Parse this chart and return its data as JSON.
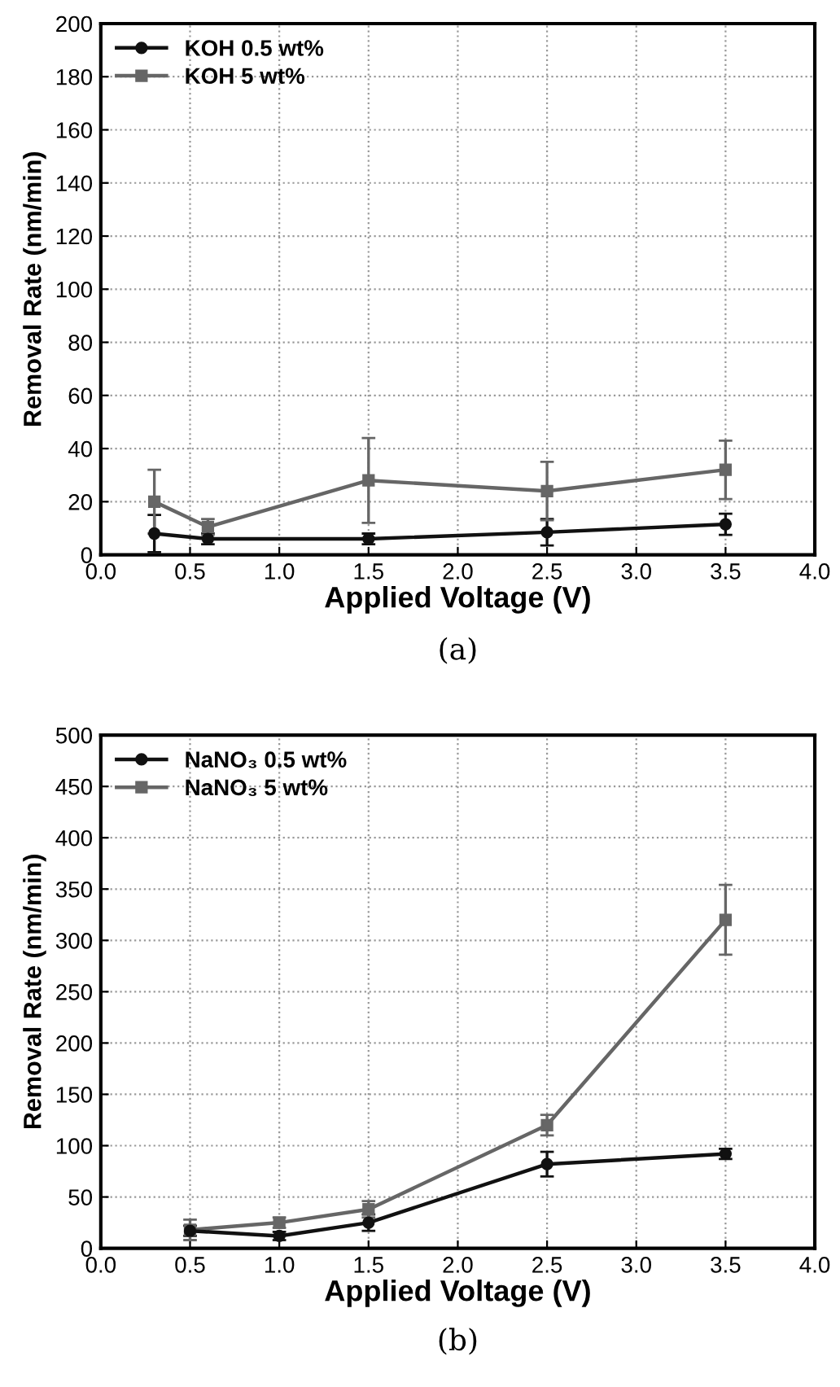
{
  "chart_data": [
    {
      "type": "line",
      "xlabel": "Applied Voltage (V)",
      "ylabel": "Removal Rate (nm/min)",
      "annotations": [
        "(a)"
      ],
      "x": [
        0.3,
        0.6,
        1.5,
        2.5,
        3.5
      ],
      "xticks": [
        {
          "value": 0,
          "label": "0.0"
        },
        0.5,
        {
          "value": 1,
          "label": "1.0"
        },
        1.5,
        {
          "value": 2,
          "label": "2.0"
        },
        2.5,
        {
          "value": 3,
          "label": "3.0"
        },
        3.5,
        {
          "value": 4,
          "label": "4.0"
        }
      ],
      "series": [
        {
          "name": "KOH 0.5 wt%",
          "color": "#111111",
          "marker": "circle",
          "values": [
            8,
            6,
            6,
            8.5,
            11.5
          ],
          "errors": [
            7,
            2,
            2,
            5,
            4
          ]
        },
        {
          "name": "KOH 5 wt%",
          "color": "#666666",
          "marker": "square",
          "values": [
            20,
            10.5,
            28,
            24,
            32
          ],
          "errors": [
            12,
            3,
            16,
            11,
            11
          ]
        }
      ],
      "xlim": [
        0,
        4
      ],
      "ylim": [
        0,
        200
      ],
      "yticks": [
        0,
        20,
        40,
        60,
        80,
        100,
        120,
        140,
        160,
        180,
        200
      ],
      "grid": true,
      "legend": "top left",
      "line_style": "solid"
    },
    {
      "type": "line",
      "xlabel": "Applied Voltage (V)",
      "ylabel": "Removal Rate (nm/min)",
      "annotations": [
        "(b)"
      ],
      "x": [
        0.5,
        1.0,
        1.5,
        2.5,
        3.5
      ],
      "xticks": [
        {
          "value": 0,
          "label": "0.0"
        },
        0.5,
        {
          "value": 1,
          "label": "1.0"
        },
        1.5,
        {
          "value": 2,
          "label": "2.0"
        },
        2.5,
        {
          "value": 3,
          "label": "3.0"
        },
        3.5,
        {
          "value": 4,
          "label": "4.0"
        }
      ],
      "series": [
        {
          "name": "NaNO₃ 0.5 wt%",
          "color": "#111111",
          "marker": "circle",
          "values": [
            17,
            12,
            25,
            82,
            92
          ],
          "errors": [
            5,
            4,
            8,
            12,
            5
          ]
        },
        {
          "name": "NaNO₃ 5 wt%",
          "color": "#666666",
          "marker": "square",
          "values": [
            18,
            25,
            38,
            120,
            320
          ],
          "errors": [
            10,
            5,
            8,
            10,
            34
          ]
        }
      ],
      "xlim": [
        0,
        4
      ],
      "ylim": [
        0,
        500
      ],
      "yticks": [
        0,
        50,
        100,
        150,
        200,
        250,
        300,
        350,
        400,
        450,
        500
      ],
      "grid": true,
      "legend": "top left",
      "line_style": "solid"
    }
  ]
}
